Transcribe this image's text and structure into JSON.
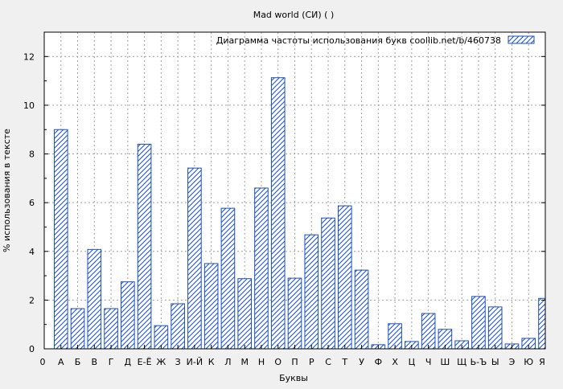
{
  "chart_data": {
    "type": "bar",
    "title": "Mad world (СИ) ( )",
    "xlabel": "Буквы",
    "ylabel": "% использования в тексте",
    "legend_label": "Диаграмма частоты использования букв  coollib.net/b/460738",
    "legend_position": "top-right",
    "grid": true,
    "ylim": [
      0,
      13
    ],
    "yticks": [
      "0",
      "2",
      "4",
      "6",
      "8",
      "10",
      "12"
    ],
    "x_edge_labels": [
      "0",
      "Я"
    ],
    "categories": [
      "А",
      "Б",
      "В",
      "Г",
      "Д",
      "Е-Ё",
      "Ж",
      "З",
      "И-Й",
      "К",
      "Л",
      "М",
      "Н",
      "О",
      "П",
      "Р",
      "С",
      "Т",
      "У",
      "Ф",
      "Х",
      "Ц",
      "Ч",
      "Ш",
      "Щ",
      "Ь-Ъ",
      "Ы",
      "Э",
      "Ю",
      "Я"
    ],
    "values": [
      9.0,
      1.65,
      4.08,
      1.65,
      2.75,
      8.4,
      0.95,
      1.85,
      7.42,
      3.5,
      5.77,
      2.88,
      6.6,
      11.13,
      2.9,
      4.68,
      5.37,
      5.87,
      3.23,
      0.17,
      1.03,
      0.3,
      1.45,
      0.8,
      0.33,
      2.15,
      1.72,
      0.2,
      0.43,
      2.07
    ],
    "colors": {
      "bar": "#1a4fbf",
      "background": "#f0f0f0",
      "plot_background": "#ffffff",
      "grid": "#a0a0a0"
    }
  }
}
